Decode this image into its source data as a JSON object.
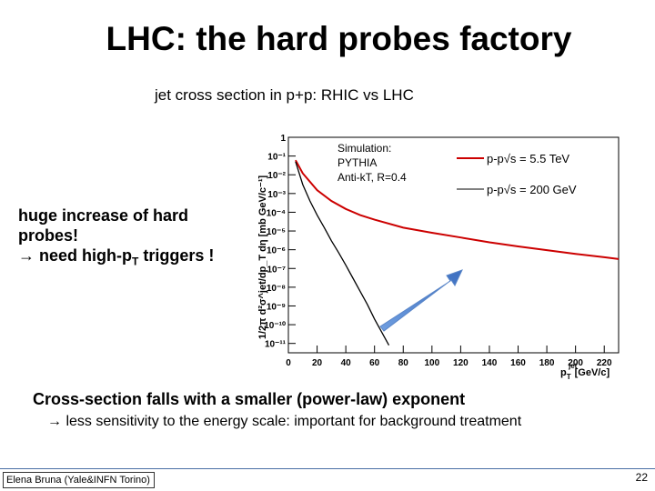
{
  "slide": {
    "title": "LHC: the hard probes factory",
    "subtitle": "jet cross section in p+p: RHIC vs LHC",
    "left_line1": "huge increase of hard",
    "left_line2": "probes!",
    "left_arrow": "→",
    "left_line3": "need high-p",
    "left_line3_sub": "T",
    "left_line3_end": " triggers !",
    "point1": "Cross-section falls with a smaller (power-law) exponent",
    "point2_arrow": "→",
    "point2": "less sensitivity to the energy scale: important for background treatment",
    "footer": "Elena Bruna (Yale&INFN Torino)",
    "page_number": "22"
  },
  "chart_data": {
    "type": "line",
    "ylabel": "1/2π d²σ^jet/dp_T dη [mb GeV/c⁻¹]",
    "xlabel_main": "p",
    "xlabel_sup": "jet",
    "xlabel_sub": "T",
    "xlabel_unit": "[GeV/c]",
    "x_ticks": [
      0,
      20,
      40,
      60,
      80,
      100,
      120,
      140,
      160,
      180,
      200,
      220
    ],
    "xlim": [
      0,
      230
    ],
    "y_scale": "log",
    "ylim_exp": [
      -11.5,
      0
    ],
    "y_tick_labels": [
      "1",
      "10⁻¹",
      "10⁻²",
      "10⁻³",
      "10⁻⁴",
      "10⁻⁵",
      "10⁻⁶",
      "10⁻⁷",
      "10⁻⁸",
      "10⁻⁹",
      "10⁻¹⁰",
      "10⁻¹¹"
    ],
    "annotation": [
      "Simulation:",
      "PYTHIA",
      "Anti-kT, R=0.4"
    ],
    "legend_position": "top-right",
    "series": [
      {
        "name": "p-p√s = 5.5 TeV",
        "color": "#cc0000",
        "x": [
          5,
          10,
          20,
          30,
          40,
          50,
          60,
          80,
          100,
          120,
          140,
          160,
          180,
          200,
          220,
          230
        ],
        "y": [
          0.06,
          0.012,
          0.0015,
          0.0004,
          0.00015,
          7e-05,
          4e-05,
          1.5e-05,
          8e-06,
          4.5e-06,
          2.5e-06,
          1.5e-06,
          9.5e-07,
          6e-07,
          4e-07,
          3.2e-07
        ]
      },
      {
        "name": "p-p√s = 200 GeV",
        "color": "#000000",
        "x": [
          5,
          10,
          15,
          20,
          25,
          30,
          35,
          40,
          45,
          50,
          55,
          60,
          65,
          70
        ],
        "y": [
          0.05,
          0.003,
          0.0004,
          7e-05,
          1.5e-05,
          3e-06,
          7e-07,
          1.5e-07,
          3e-08,
          6e-09,
          1.2e-09,
          2e-10,
          4e-11,
          8e-12
        ]
      }
    ]
  }
}
